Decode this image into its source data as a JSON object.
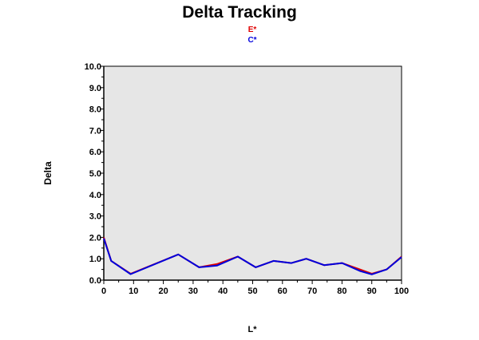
{
  "chart_data": {
    "type": "line",
    "title": "Delta Tracking",
    "xlabel": "L*",
    "ylabel": "Delta",
    "xlim": [
      0,
      100
    ],
    "ylim": [
      0,
      10
    ],
    "xticks": [
      "0",
      "10",
      "20",
      "30",
      "40",
      "50",
      "60",
      "70",
      "80",
      "90",
      "100"
    ],
    "yticks": [
      "0.0",
      "1.0",
      "2.0",
      "3.0",
      "4.0",
      "5.0",
      "6.0",
      "7.0",
      "8.0",
      "9.0",
      "10.0"
    ],
    "grid": false,
    "legend_position": "top-center",
    "plot_background": "#e6e6e6",
    "series": [
      {
        "name": "E*",
        "color": "#e00000",
        "x": [
          0,
          2.5,
          9,
          25,
          32,
          38,
          45,
          51,
          57,
          63,
          68,
          74,
          80,
          86,
          90,
          95,
          100
        ],
        "y": [
          2.0,
          0.9,
          0.3,
          1.2,
          0.6,
          0.75,
          1.1,
          0.6,
          0.9,
          0.8,
          1.0,
          0.7,
          0.8,
          0.5,
          0.3,
          0.5,
          1.1
        ]
      },
      {
        "name": "C*",
        "color": "#0000dd",
        "x": [
          0,
          2.5,
          9,
          25,
          32,
          38,
          45,
          51,
          57,
          63,
          68,
          74,
          80,
          86,
          90,
          95,
          100
        ],
        "y": [
          1.95,
          0.9,
          0.28,
          1.2,
          0.6,
          0.68,
          1.1,
          0.6,
          0.9,
          0.8,
          1.0,
          0.7,
          0.8,
          0.43,
          0.27,
          0.5,
          1.08
        ]
      }
    ]
  }
}
